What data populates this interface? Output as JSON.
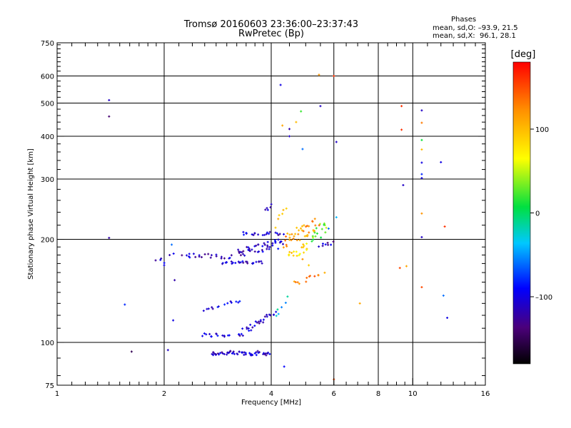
{
  "header": {
    "title": "Tromsø 20160603 23:36:00–23:37:43",
    "subtitle": "RwPretec (Bp)",
    "stats_heading": "Phases",
    "stats_o": "mean, sd,O: –93.9, 21.5",
    "stats_x": "mean, sd,X:  96.1, 28.1"
  },
  "colorbar": {
    "unit_label": "[deg]",
    "ticks": [
      {
        "value": 100,
        "label": "100"
      },
      {
        "value": 0,
        "label": "0"
      },
      {
        "value": -100,
        "label": "–100"
      }
    ],
    "range": [
      -180,
      180
    ]
  },
  "chart_data": {
    "type": "scatter",
    "xlabel": "Frequency [MHz]",
    "ylabel": "Stationary phase Virtual Height [km]",
    "xscale": "log",
    "yscale": "log",
    "xlim": [
      1,
      16
    ],
    "ylim": [
      75,
      750
    ],
    "xticks": [
      {
        "value": 1,
        "label": "1"
      },
      {
        "value": 2,
        "label": "2"
      },
      {
        "value": 4,
        "label": "4"
      },
      {
        "value": 6,
        "label": "6"
      },
      {
        "value": 8,
        "label": "8"
      },
      {
        "value": 10,
        "label": "10"
      },
      {
        "value": 16,
        "label": "16"
      }
    ],
    "xgrid": [
      2,
      4,
      6,
      8,
      10
    ],
    "xminor": [
      1.1,
      1.2,
      1.3,
      1.4,
      1.5,
      1.6,
      1.7,
      1.8,
      1.9,
      2.2,
      2.4,
      2.6,
      2.8,
      3,
      3.2,
      3.4,
      3.6,
      3.8,
      4.5,
      5,
      5.5,
      6.5,
      7,
      7.5,
      8.5,
      9,
      9.5,
      11,
      12,
      13,
      14,
      15
    ],
    "yticks": [
      {
        "value": 75,
        "label": "75"
      },
      {
        "value": 100,
        "label": "100"
      },
      {
        "value": 200,
        "label": "200"
      },
      {
        "value": 300,
        "label": "300"
      },
      {
        "value": 400,
        "label": "400"
      },
      {
        "value": 500,
        "label": "500"
      },
      {
        "value": 600,
        "label": "600"
      },
      {
        "value": 750,
        "label": "750"
      }
    ],
    "ygrid": [
      100,
      200,
      300,
      400,
      500,
      600
    ],
    "yminor": [
      80,
      90,
      110,
      120,
      130,
      140,
      150,
      160,
      170,
      180,
      190,
      220,
      240,
      260,
      280,
      320,
      340,
      360,
      380,
      420,
      440,
      460,
      480,
      520,
      540,
      560,
      580,
      620,
      640,
      660,
      680,
      700,
      720,
      740
    ],
    "grid": true,
    "colorscale": "phase in degrees, rainbow from black (–180) to red (+180)",
    "clusters": [
      {
        "freq": [
          2.55,
          3.05
        ],
        "height": [
          105,
          105
        ],
        "phase": -105,
        "n": 14,
        "spread": 0.015
      },
      {
        "freq": [
          2.7,
          3.95
        ],
        "height": [
          93,
          93
        ],
        "phase": -110,
        "n": 55,
        "spread": 0.015
      },
      {
        "freq": [
          3.2,
          4.1
        ],
        "height": [
          105,
          122
        ],
        "phase": -110,
        "n": 30,
        "spread": 0.02
      },
      {
        "freq": [
          2.55,
          3.3
        ],
        "height": [
          124,
          133
        ],
        "phase": -105,
        "n": 14,
        "spread": 0.012
      },
      {
        "freq": [
          2.25,
          3.1
        ],
        "height": [
          180,
          178
        ],
        "phase": -110,
        "n": 22,
        "spread": 0.015
      },
      {
        "freq": [
          2.9,
          3.8
        ],
        "height": [
          171,
          171
        ],
        "phase": -110,
        "n": 25,
        "spread": 0.01
      },
      {
        "freq": [
          3.2,
          4.3
        ],
        "height": [
          183,
          195
        ],
        "phase": -110,
        "n": 45,
        "spread": 0.03
      },
      {
        "freq": [
          3.3,
          4.3
        ],
        "height": [
          208,
          208
        ],
        "phase": -110,
        "n": 20,
        "spread": 0.012
      },
      {
        "freq": [
          1.9,
          2.1
        ],
        "height": [
          172,
          178
        ],
        "phase": -115,
        "n": 6,
        "spread": 0.03
      },
      {
        "freq": [
          4.35,
          5.4
        ],
        "height": [
          198,
          222
        ],
        "phase": 120,
        "n": 40,
        "spread": 0.05
      },
      {
        "freq": [
          4.5,
          5.1
        ],
        "height": [
          180,
          190
        ],
        "phase": 80,
        "n": 18,
        "spread": 0.04
      },
      {
        "freq": [
          5.2,
          5.7
        ],
        "height": [
          200,
          220
        ],
        "phase": 30,
        "n": 16,
        "spread": 0.04
      },
      {
        "freq": [
          5.5,
          5.9
        ],
        "height": [
          190,
          196
        ],
        "phase": -115,
        "n": 8,
        "spread": 0.02
      },
      {
        "freq": [
          4.6,
          5.6
        ],
        "height": [
          148,
          160
        ],
        "phase": 130,
        "n": 12,
        "spread": 0.02
      },
      {
        "freq": [
          4.1,
          4.4
        ],
        "height": [
          225,
          245
        ],
        "phase": 90,
        "n": 6,
        "spread": 0.04
      },
      {
        "freq": [
          3.9,
          4.0
        ],
        "height": [
          240,
          250
        ],
        "phase": -115,
        "n": 5,
        "spread": 0.02
      },
      {
        "freq": [
          4.1,
          4.4
        ],
        "height": [
          120,
          135
        ],
        "phase": -30,
        "n": 6,
        "spread": 0.03
      }
    ],
    "points": [
      {
        "f": 1.4,
        "h": 510,
        "p": -110
      },
      {
        "f": 1.4,
        "h": 457,
        "p": -140
      },
      {
        "f": 1.4,
        "h": 202,
        "p": -120
      },
      {
        "f": 1.55,
        "h": 129,
        "p": -80
      },
      {
        "f": 1.62,
        "h": 94,
        "p": -150
      },
      {
        "f": 2.05,
        "h": 95,
        "p": -110
      },
      {
        "f": 2.12,
        "h": 116,
        "p": -100
      },
      {
        "f": 2.1,
        "h": 193,
        "p": -60
      },
      {
        "f": 2.0,
        "h": 168,
        "p": -100
      },
      {
        "f": 2.14,
        "h": 152,
        "p": -120
      },
      {
        "f": 4.25,
        "h": 565,
        "p": -100
      },
      {
        "f": 4.5,
        "h": 420,
        "p": -120
      },
      {
        "f": 4.5,
        "h": 400,
        "p": -110
      },
      {
        "f": 4.3,
        "h": 430,
        "p": 110
      },
      {
        "f": 4.7,
        "h": 440,
        "p": 100
      },
      {
        "f": 4.85,
        "h": 473,
        "p": 20
      },
      {
        "f": 4.9,
        "h": 367,
        "p": -60
      },
      {
        "f": 5.5,
        "h": 490,
        "p": -110
      },
      {
        "f": 5.45,
        "h": 605,
        "p": 120
      },
      {
        "f": 6.0,
        "h": 600,
        "p": 160
      },
      {
        "f": 6.1,
        "h": 385,
        "p": -110
      },
      {
        "f": 6.1,
        "h": 232,
        "p": -40
      },
      {
        "f": 5.8,
        "h": 215,
        "p": -60
      },
      {
        "f": 6.0,
        "h": 78,
        "p": 150
      },
      {
        "f": 4.35,
        "h": 85,
        "p": -90
      },
      {
        "f": 7.1,
        "h": 130,
        "p": 110
      },
      {
        "f": 9.3,
        "h": 490,
        "p": 160
      },
      {
        "f": 9.3,
        "h": 418,
        "p": 160
      },
      {
        "f": 9.4,
        "h": 288,
        "p": -110
      },
      {
        "f": 9.2,
        "h": 165,
        "p": 150
      },
      {
        "f": 9.6,
        "h": 167,
        "p": 110
      },
      {
        "f": 10.6,
        "h": 476,
        "p": -110
      },
      {
        "f": 10.6,
        "h": 438,
        "p": 130
      },
      {
        "f": 10.6,
        "h": 390,
        "p": 10
      },
      {
        "f": 10.6,
        "h": 366,
        "p": 100
      },
      {
        "f": 10.6,
        "h": 335,
        "p": -100
      },
      {
        "f": 10.6,
        "h": 310,
        "p": -80
      },
      {
        "f": 10.6,
        "h": 302,
        "p": -100
      },
      {
        "f": 10.6,
        "h": 238,
        "p": 120
      },
      {
        "f": 10.6,
        "h": 203,
        "p": -110
      },
      {
        "f": 10.6,
        "h": 145,
        "p": 150
      },
      {
        "f": 12.0,
        "h": 336,
        "p": -100
      },
      {
        "f": 12.3,
        "h": 218,
        "p": 160
      },
      {
        "f": 12.2,
        "h": 137,
        "p": -60
      },
      {
        "f": 12.5,
        "h": 118,
        "p": -100
      },
      {
        "f": 4.9,
        "h": 175,
        "p": 120
      },
      {
        "f": 5.1,
        "h": 168,
        "p": 90
      }
    ]
  }
}
